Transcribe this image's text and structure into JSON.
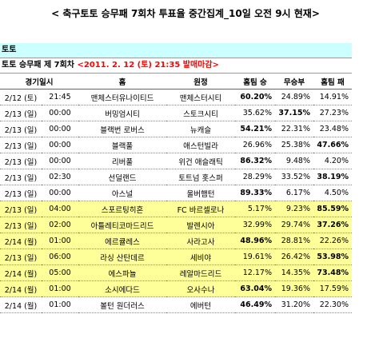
{
  "header": {
    "title": "< 축구토토 승무패 7회차 투표율 중간집계_10일 오전 9시 현재>"
  },
  "section": {
    "label": "토토",
    "color": "#ccffff"
  },
  "round": {
    "label": "토토 승무패 제 7회차",
    "deadline": "<2011. 2. 12 (토) 21:35 발매마감>",
    "deadline_color": "#ff0000"
  },
  "table": {
    "columns": [
      "경기일시",
      "홈",
      "원정",
      "홈팀 승",
      "무승부",
      "홈팀 패"
    ],
    "rows": [
      {
        "date": "2/12 (토)",
        "time": "21:45",
        "home": "맨체스터유나이티드",
        "away": "맨체스터시티",
        "win": "60.20%",
        "draw": "24.89%",
        "loss": "14.91%"
      },
      {
        "date": "2/13 (일)",
        "time": "00:00",
        "home": "버밍엄시티",
        "away": "스토크시티",
        "win": "35.62%",
        "draw": "37.15%",
        "loss": "27.23%"
      },
      {
        "date": "2/13 (일)",
        "time": "00:00",
        "home": "블랙번 로버스",
        "away": "뉴캐슬",
        "win": "54.21%",
        "draw": "22.31%",
        "loss": "23.48%"
      },
      {
        "date": "2/13 (일)",
        "time": "00:00",
        "home": "블랙풀",
        "away": "애스턴빌라",
        "win": "26.96%",
        "draw": "25.38%",
        "loss": "47.66%"
      },
      {
        "date": "2/13 (일)",
        "time": "00:00",
        "home": "리버풀",
        "away": "위건 애슬래틱",
        "win": "86.32%",
        "draw": "9.48%",
        "loss": "4.20%"
      },
      {
        "date": "2/13 (일)",
        "time": "02:30",
        "home": "선덜랜드",
        "away": "토트넘 홋스퍼",
        "win": "28.29%",
        "draw": "33.52%",
        "loss": "38.19%"
      },
      {
        "date": "2/13 (일)",
        "time": "00:00",
        "home": "아스널",
        "away": "울버햄턴",
        "win": "89.33%",
        "draw": "6.17%",
        "loss": "4.50%"
      },
      {
        "date": "2/13 (일)",
        "time": "04:00",
        "home": "스포르팅히혼",
        "away": "FC 바르셀로나",
        "win": "5.17%",
        "draw": "9.23%",
        "loss": "85.59%",
        "color": "#ffff99"
      },
      {
        "date": "2/13 (일)",
        "time": "02:00",
        "home": "아틀레티코마드리드",
        "away": "발렌시아",
        "win": "32.99%",
        "draw": "29.74%",
        "loss": "37.26%",
        "color": "#ffff99"
      },
      {
        "date": "2/14 (월)",
        "time": "01:00",
        "home": "에르큘레스",
        "away": "사라고사",
        "win": "48.96%",
        "draw": "28.81%",
        "loss": "22.26%",
        "color": "#ffff99"
      },
      {
        "date": "2/13 (일)",
        "time": "06:00",
        "home": "라싱 산탄데르",
        "away": "세비야",
        "win": "19.61%",
        "draw": "26.42%",
        "loss": "53.98%",
        "color": "#ffff99"
      },
      {
        "date": "2/14 (월)",
        "time": "05:00",
        "home": "에스파뇰",
        "away": "레알마드리드",
        "win": "12.17%",
        "draw": "14.35%",
        "loss": "73.48%",
        "color": "#ffff99"
      },
      {
        "date": "2/14 (월)",
        "time": "01:00",
        "home": "소시에다드",
        "away": "오사수나",
        "win": "63.04%",
        "draw": "19.36%",
        "loss": "17.59%",
        "color": "#ffff99"
      },
      {
        "date": "2/14 (월)",
        "time": "01:00",
        "home": "볼턴 원더러스",
        "away": "에버턴",
        "win": "46.49%",
        "draw": "31.20%",
        "loss": "22.30%"
      }
    ]
  }
}
